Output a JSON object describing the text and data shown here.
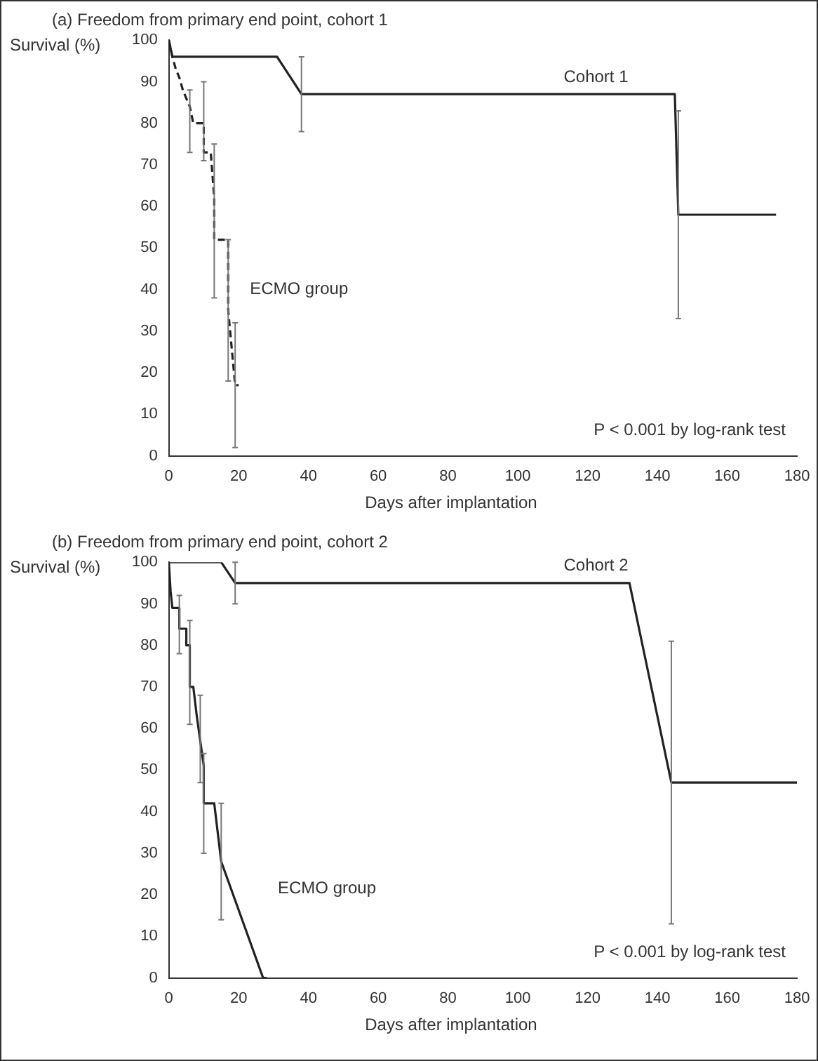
{
  "chart_data": [
    {
      "type": "line",
      "title": "(a)  Freedom from primary end point, cohort 1",
      "xlabel": "Days after implantation",
      "ylabel": "Survival (%)",
      "xlim": [
        0,
        180
      ],
      "xticks": [
        0,
        20,
        40,
        60,
        80,
        100,
        120,
        140,
        160,
        180
      ],
      "ylim": [
        0,
        100
      ],
      "yticks": [
        0,
        10,
        20,
        30,
        40,
        50,
        60,
        70,
        80,
        90,
        100
      ],
      "grid": false,
      "legend": false,
      "marker": "none",
      "series": [
        {
          "name": "Cohort 1",
          "color": "#222222",
          "line_style": "solid",
          "x": [
            0,
            1,
            31,
            38,
            145,
            146,
            174
          ],
          "values": [
            100,
            96,
            96,
            87,
            87,
            58,
            58
          ],
          "errors": [
            null,
            null,
            null,
            [
              78,
              96
            ],
            null,
            [
              33,
              83
            ],
            null
          ]
        },
        {
          "name": "ECMO group",
          "color": "#222222",
          "line_style": "dashed",
          "x": [
            0,
            1,
            2,
            3,
            4,
            6,
            7,
            10,
            10,
            12,
            13,
            13,
            17,
            17,
            19,
            20
          ],
          "values": [
            100,
            96,
            93,
            91,
            88,
            84,
            80,
            80,
            73,
            73,
            62,
            52,
            52,
            35,
            17,
            17
          ],
          "errors": [
            null,
            null,
            null,
            null,
            null,
            [
              73,
              88
            ],
            null,
            [
              71,
              90
            ],
            null,
            null,
            [
              38,
              75
            ],
            null,
            [
              18,
              52
            ],
            null,
            [
              2,
              32
            ],
            null
          ]
        }
      ],
      "annotations": [
        "P < 0.001 by log-rank test"
      ]
    },
    {
      "type": "line",
      "title": "(b)  Freedom from primary end point, cohort 2",
      "xlabel": "Days after implantation",
      "ylabel": "Survival (%)",
      "xlim": [
        0,
        180
      ],
      "xticks": [
        0,
        20,
        40,
        60,
        80,
        100,
        120,
        140,
        160,
        180
      ],
      "ylim": [
        0,
        100
      ],
      "yticks": [
        0,
        10,
        20,
        30,
        40,
        50,
        60,
        70,
        80,
        90,
        100
      ],
      "grid": false,
      "legend": false,
      "marker": "none",
      "series": [
        {
          "name": "Cohort 2",
          "color": "#222222",
          "line_style": "solid",
          "x": [
            0,
            15,
            19,
            132,
            144,
            180
          ],
          "values": [
            100,
            100,
            95,
            95,
            47,
            47
          ],
          "errors": [
            null,
            null,
            [
              90,
              100
            ],
            null,
            [
              13,
              81
            ],
            null
          ]
        },
        {
          "name": "ECMO group",
          "color": "#222222",
          "line_style": "solid",
          "x": [
            0,
            0.5,
            1,
            3,
            3,
            5,
            5,
            6,
            6,
            7,
            8,
            9,
            10,
            10,
            13,
            15,
            27,
            28
          ],
          "values": [
            100,
            93,
            89,
            89,
            84,
            84,
            80,
            80,
            70,
            70,
            63,
            57,
            51,
            42,
            42,
            28,
            0,
            0
          ],
          "errors": [
            null,
            null,
            null,
            [
              78,
              92
            ],
            null,
            null,
            null,
            [
              61,
              86
            ],
            null,
            null,
            null,
            [
              47,
              68
            ],
            [
              30,
              54
            ],
            null,
            null,
            [
              14,
              42
            ],
            null,
            null
          ]
        }
      ],
      "annotations": [
        "P < 0.001 by log-rank test"
      ]
    }
  ]
}
